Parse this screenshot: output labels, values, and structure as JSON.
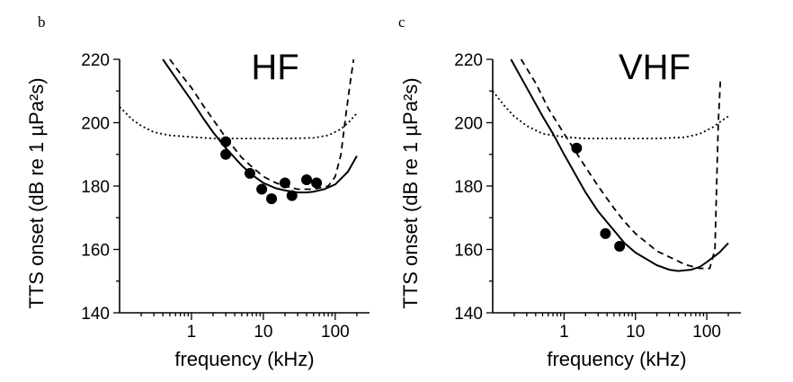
{
  "chart_data": [
    {
      "type": "line",
      "panel_label": "b",
      "title": "HF",
      "xlabel": "frequency (kHz)",
      "ylabel": "TTS onset (dB re 1 µPa²s)",
      "x_scale": "log",
      "xlim": [
        0.1,
        300
      ],
      "ylim": [
        140,
        220
      ],
      "x_ticks": [
        1,
        10,
        100
      ],
      "x_tick_labels": [
        "1",
        "10",
        "100"
      ],
      "y_ticks": [
        140,
        160,
        180,
        200,
        220
      ],
      "y_tick_labels": [
        "140",
        "160",
        "180",
        "200",
        "220"
      ],
      "series": [
        {
          "style": "solid",
          "x": [
            0.4,
            0.7,
            1,
            1.5,
            2,
            3,
            5,
            7,
            10,
            15,
            20,
            30,
            40,
            50,
            70,
            100,
            150,
            200
          ],
          "y": [
            220,
            212,
            207,
            201,
            197,
            192,
            186.5,
            183.5,
            181,
            179.3,
            178.6,
            178,
            178,
            178.2,
            179,
            180.5,
            184.5,
            189.5
          ]
        },
        {
          "style": "dashed",
          "x": [
            0.5,
            0.7,
            1,
            1.5,
            2,
            3,
            5,
            7,
            10,
            15,
            20,
            30,
            50,
            80,
            100,
            120,
            140,
            160,
            180
          ],
          "y": [
            220,
            215.5,
            211,
            205,
            201,
            195.3,
            189,
            186,
            183,
            181,
            180,
            179,
            179,
            180,
            183,
            190,
            202,
            212,
            220
          ]
        },
        {
          "style": "dotted",
          "x": [
            0.1,
            0.15,
            0.2,
            0.3,
            0.5,
            1,
            2,
            5,
            10,
            20,
            50,
            80,
            120,
            160,
            200
          ],
          "y": [
            205,
            201,
            199,
            197,
            196,
            195.5,
            195,
            195,
            195,
            195,
            195.2,
            196,
            198,
            200.5,
            203
          ]
        },
        {
          "style": "points",
          "x": [
            3,
            3,
            6.5,
            9.5,
            13,
            20,
            25,
            40,
            55
          ],
          "y": [
            194,
            190,
            184,
            179,
            176,
            181,
            177,
            182,
            181
          ]
        }
      ]
    },
    {
      "type": "line",
      "panel_label": "c",
      "title": "VHF",
      "xlabel": "frequency (kHz)",
      "ylabel": "TTS onset (dB re 1 µPa²s)",
      "x_scale": "log",
      "xlim": [
        0.1,
        300
      ],
      "ylim": [
        140,
        220
      ],
      "x_ticks": [
        1,
        10,
        100
      ],
      "x_tick_labels": [
        "1",
        "10",
        "100"
      ],
      "y_ticks": [
        140,
        160,
        180,
        200,
        220
      ],
      "y_tick_labels": [
        "140",
        "160",
        "180",
        "200",
        "220"
      ],
      "series": [
        {
          "style": "solid",
          "x": [
            0.18,
            0.3,
            0.5,
            0.7,
            1,
            2,
            3,
            5,
            7,
            10,
            20,
            30,
            40,
            60,
            80,
            100,
            150,
            200
          ],
          "y": [
            220,
            211,
            202,
            196.5,
            190,
            178,
            172,
            166,
            162,
            159,
            155,
            153.6,
            153.2,
            153.6,
            154.5,
            156,
            159,
            162
          ]
        },
        {
          "style": "dashed",
          "x": [
            0.25,
            0.4,
            0.6,
            1,
            2,
            3,
            5,
            7,
            10,
            20,
            50,
            80,
            110,
            130,
            145,
            155
          ],
          "y": [
            220,
            212.5,
            204.5,
            196.5,
            186,
            180,
            173,
            168.8,
            165,
            159.5,
            155.2,
            154,
            154,
            160,
            200,
            213
          ]
        },
        {
          "style": "dotted",
          "x": [
            0.1,
            0.15,
            0.2,
            0.3,
            0.5,
            1,
            2,
            5,
            10,
            20,
            50,
            80,
            120,
            160,
            200
          ],
          "y": [
            210,
            205,
            202,
            199,
            196.5,
            195.5,
            195,
            195,
            195,
            195,
            195.4,
            196.5,
            198.5,
            200.5,
            202
          ]
        },
        {
          "style": "points",
          "x": [
            1.5,
            3.8,
            6
          ],
          "y": [
            192,
            165,
            161
          ]
        }
      ]
    }
  ]
}
